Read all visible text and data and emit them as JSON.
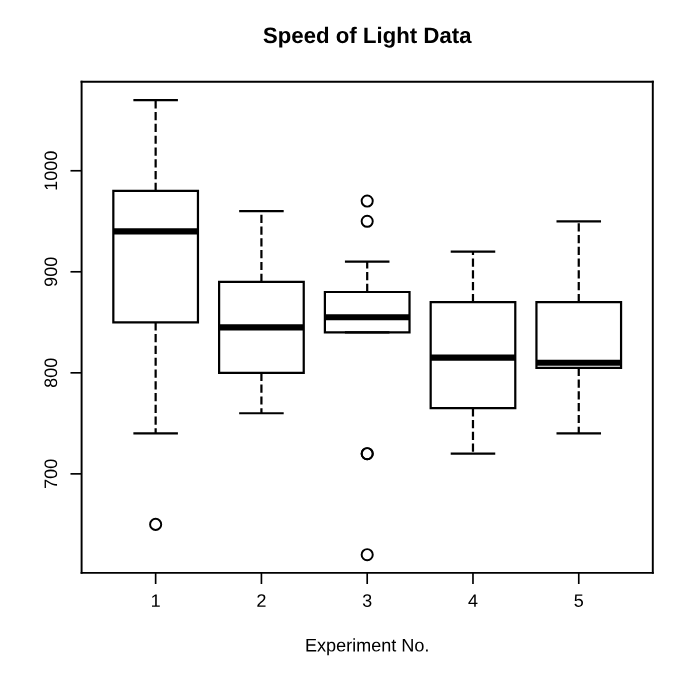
{
  "chart_data": {
    "type": "box",
    "title": "Speed of Light Data",
    "xlabel": "Experiment No.",
    "categories": [
      "1",
      "2",
      "3",
      "4",
      "5"
    ],
    "boxes": [
      {
        "low": 740,
        "q1": 850,
        "median": 940,
        "q3": 980,
        "high": 1070,
        "outliers": [
          650
        ]
      },
      {
        "low": 760,
        "q1": 800,
        "median": 845,
        "q3": 890,
        "high": 960
      },
      {
        "low": 840,
        "q1": 840,
        "median": 855,
        "q3": 880,
        "high": 910,
        "outliers": [
          620,
          720,
          720,
          950,
          970
        ]
      },
      {
        "low": 720,
        "q1": 765,
        "median": 815,
        "q3": 870,
        "high": 920
      },
      {
        "low": 740,
        "q1": 805,
        "median": 810,
        "q3": 870,
        "high": 950
      }
    ],
    "ylim": [
      602,
      1088
    ],
    "yticks": [
      700,
      800,
      900,
      1000
    ],
    "grid": false,
    "line_style": "dashed",
    "marker": "circle"
  }
}
